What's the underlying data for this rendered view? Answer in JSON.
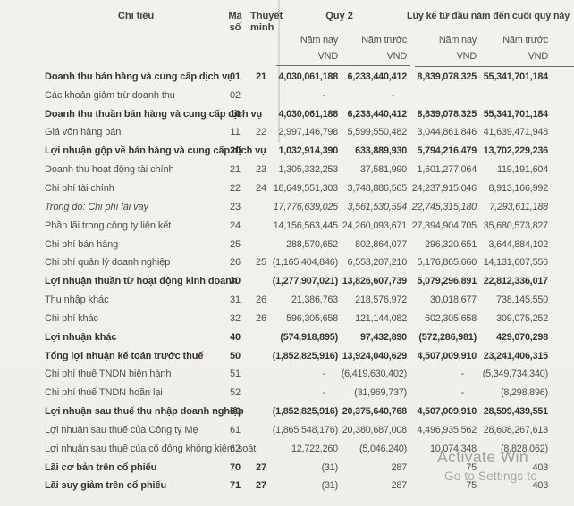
{
  "header": {
    "col_item": "Chi tiêu",
    "col_code_line1": "Mã",
    "col_code_line2": "số",
    "col_note_line1": "Thuyết",
    "col_note_line2": "minh",
    "group_q2": "Quý 2",
    "group_ytd": "Lũy kế từ đầu năm đến cuối quý này",
    "sub_current": "Năm nay",
    "sub_prior": "Năm trước",
    "unit": "VND"
  },
  "table": {
    "rows": [
      {
        "label": "Doanh thu bán hàng và cung cấp dịch vụ",
        "code": "01",
        "note": "21",
        "q2_current": "4,030,061,188",
        "q2_prior": "6,233,440,412",
        "ytd_current": "8,839,078,325",
        "ytd_prior": "55,341,701,184",
        "bold": true
      },
      {
        "label": "Các khoản giảm trừ doanh thu",
        "code": "02",
        "note": "",
        "q2_current": "-",
        "q2_prior": "-",
        "ytd_current": "",
        "ytd_prior": ""
      },
      {
        "label": "Doanh thu thuần bán hàng và cung cấp dịch vụ",
        "code": "10",
        "note": "",
        "q2_current": "4,030,061,188",
        "q2_prior": "6,233,440,412",
        "ytd_current": "8,839,078,325",
        "ytd_prior": "55,341,701,184",
        "bold": true
      },
      {
        "label": "Giá vốn hàng bán",
        "code": "11",
        "note": "22",
        "q2_current": "2,997,146,798",
        "q2_prior": "5,599,550,482",
        "ytd_current": "3,044,861,846",
        "ytd_prior": "41,639,471,948"
      },
      {
        "label": "Lợi nhuận gộp về bán hàng và cung cấp dịch vụ",
        "code": "20",
        "note": "",
        "q2_current": "1,032,914,390",
        "q2_prior": "633,889,930",
        "ytd_current": "5,794,216,479",
        "ytd_prior": "13,702,229,236",
        "bold": true
      },
      {
        "label": "Doanh thu hoạt động tài chính",
        "code": "21",
        "note": "23",
        "q2_current": "1,305,332,253",
        "q2_prior": "37,581,990",
        "ytd_current": "1,601,277,064",
        "ytd_prior": "119,191,604"
      },
      {
        "label": "Chi phí tài chính",
        "code": "22",
        "note": "24",
        "q2_current": "18,649,551,303",
        "q2_prior": "3,748,886,565",
        "ytd_current": "24,237,915,046",
        "ytd_prior": "8,913,166,992"
      },
      {
        "label": "Trong đó: Chi phí lãi vay",
        "code": "23",
        "note": "",
        "q2_current": "17,776,639,025",
        "q2_prior": "3,561,530,594",
        "ytd_current": "22,745,315,180",
        "ytd_prior": "7,293,611,188",
        "italic": true
      },
      {
        "label": "Phần lãi trong công ty liên kết",
        "code": "24",
        "note": "",
        "q2_current": "14,156,563,445",
        "q2_prior": "24,260,093,671",
        "ytd_current": "27,394,904,705",
        "ytd_prior": "35,680,573,827"
      },
      {
        "label": "Chi phí bán hàng",
        "code": "25",
        "note": "",
        "q2_current": "288,570,652",
        "q2_prior": "802,864,077",
        "ytd_current": "296,320,651",
        "ytd_prior": "3,644,884,102"
      },
      {
        "label": "Chi phí quản lý doanh nghiệp",
        "code": "26",
        "note": "25",
        "q2_current": "(1,165,404,846)",
        "q2_prior": "6,553,207,210",
        "ytd_current": "5,176,865,660",
        "ytd_prior": "14,131,607,556"
      },
      {
        "label": "Lợi nhuận thuần từ hoạt động kinh doanh",
        "code": "30",
        "note": "",
        "q2_current": "(1,277,907,021)",
        "q2_prior": "13,826,607,739",
        "ytd_current": "5,079,296,891",
        "ytd_prior": "22,812,336,017",
        "bold": true
      },
      {
        "label": "Thu nhập khác",
        "code": "31",
        "note": "26",
        "q2_current": "21,386,763",
        "q2_prior": "218,576,972",
        "ytd_current": "30,018,677",
        "ytd_prior": "738,145,550"
      },
      {
        "label": "Chi phí khác",
        "code": "32",
        "note": "26",
        "q2_current": "596,305,658",
        "q2_prior": "121,144,082",
        "ytd_current": "602,305,658",
        "ytd_prior": "309,075,252"
      },
      {
        "label": "Lợi nhuận khác",
        "code": "40",
        "note": "",
        "q2_current": "(574,918,895)",
        "q2_prior": "97,432,890",
        "ytd_current": "(572,286,981)",
        "ytd_prior": "429,070,298",
        "bold": true
      },
      {
        "label": "Tổng lợi nhuận kế toán trước thuế",
        "code": "50",
        "note": "",
        "q2_current": "(1,852,825,916)",
        "q2_prior": "13,924,040,629",
        "ytd_current": "4,507,009,910",
        "ytd_prior": "23,241,406,315",
        "bold": true
      },
      {
        "label": "Chi phí thuế TNDN hiện hành",
        "code": "51",
        "note": "",
        "q2_current": "-",
        "q2_prior": "(6,419,630,402)",
        "ytd_current": "-",
        "ytd_prior": "(5,349,734,340)"
      },
      {
        "label": "Chi phí thuế TNDN hoãn lại",
        "code": "52",
        "note": "",
        "q2_current": "-",
        "q2_prior": "(31,969,737)",
        "ytd_current": "-",
        "ytd_prior": "(8,298,896)"
      },
      {
        "label": "Lợi nhuận sau thuế thu nhập doanh nghiệp",
        "code": "60",
        "note": "",
        "q2_current": "(1,852,825,916)",
        "q2_prior": "20,375,640,768",
        "ytd_current": "4,507,009,910",
        "ytd_prior": "28,599,439,551",
        "bold": true
      },
      {
        "label": "Lợi nhuận sau thuế của Công ty Mẹ",
        "code": "61",
        "note": "",
        "q2_current": "(1,865,548,176)",
        "q2_prior": "20,380,687,008",
        "ytd_current": "4,496,935,562",
        "ytd_prior": "28,608,267,613"
      },
      {
        "label": "Lợi nhuận sau thuế của cổ đông không kiểm soát",
        "code": "62",
        "note": "",
        "q2_current": "12,722,260",
        "q2_prior": "(5,046,240)",
        "ytd_current": "10,074,348",
        "ytd_prior": "(8,828,062)"
      },
      {
        "label": "Lãi cơ bản trên cổ phiếu",
        "code": "70",
        "note": "27",
        "q2_current": "(31)",
        "q2_prior": "287",
        "ytd_current": "75",
        "ytd_prior": "403",
        "bold_label": true
      },
      {
        "label": "Lãi suy giảm trên cổ phiếu",
        "code": "71",
        "note": "27",
        "q2_current": "(31)",
        "q2_prior": "287",
        "ytd_current": "75",
        "ytd_prior": "403",
        "bold_label": true
      }
    ]
  },
  "watermark": {
    "line1": "Activate Win",
    "line2": "Go to Settings to"
  },
  "colors": {
    "paper": "#f1f0ec",
    "text": "#4f4d48",
    "text_bold": "#37352f",
    "rule": "#6e6d68",
    "watermark": "#8d8d8b"
  }
}
